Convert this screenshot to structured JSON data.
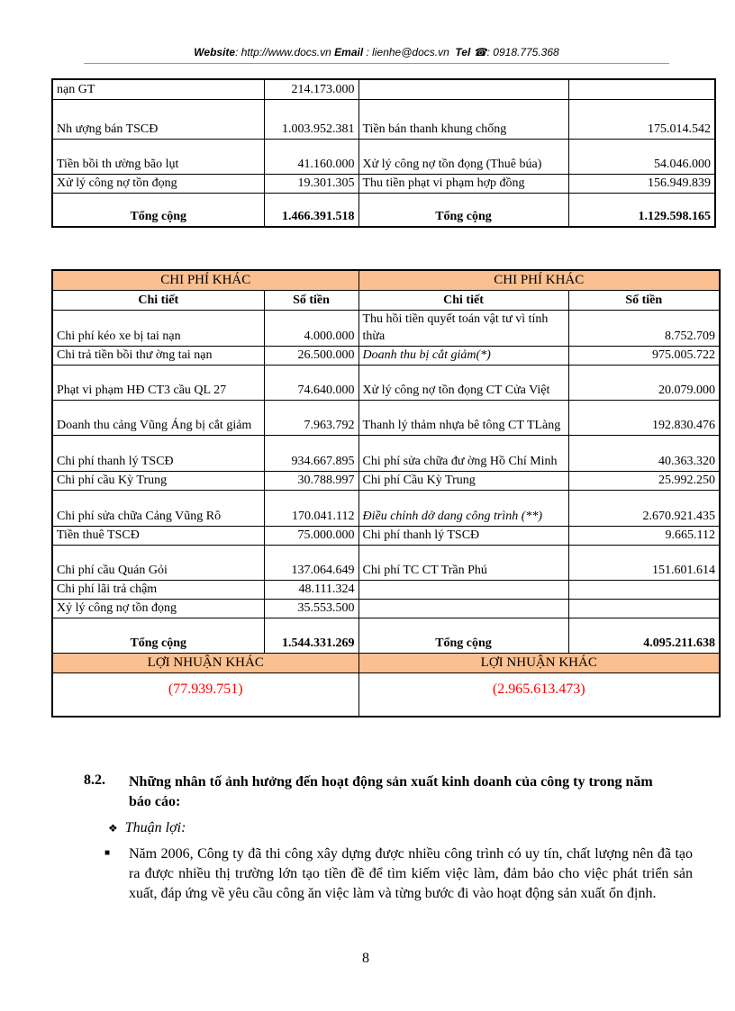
{
  "header": {
    "website_label": "Website",
    "website": ": http://www.docs.vn",
    "email_label": "Email",
    "email": ": lienhe@docs.vn",
    "tel_label": "Tel",
    "tel_icon": "phone-icon",
    "tel": ": 0918.775.368"
  },
  "table1": {
    "rows": [
      [
        "nạn GT",
        "214.173.000",
        "",
        ""
      ],
      [
        "Nh   ượng bán TSCĐ",
        "1.003.952.381",
        "Tiền bán thanh khung chống",
        "175.014.542"
      ],
      [
        "Tiền bồi th   ường bão lụt",
        "41.160.000",
        "Xử lý công nợ tồn đọng (Thuê búa)",
        "54.046.000"
      ],
      [
        "Xử lý công nợ tồn đọng",
        "19.301.305",
        "Thu tiền phạt vi phạm hợp đồng",
        "156.949.839"
      ]
    ],
    "total_label": "Tổng cộng",
    "total_left": "1.466.391.518",
    "total_right": "1.129.598.165"
  },
  "table2": {
    "title_left": "CHI PHÍ KHÁC",
    "title_right": "CHI PHÍ KHÁC",
    "col_detail": "Chi tiết",
    "col_amount": "Số tiền",
    "rows": [
      [
        "Chi phí kéo xe bị tai nạn",
        "4.000.000",
        "Thu hồi tiền quyết toán vật tư vì tính thừa",
        "8.752.709"
      ],
      [
        "Chi trả tiền bồi thư   ờng tai nạn",
        "26.500.000",
        "Doanh thu bị cắt giảm(*)",
        "975.005.722"
      ],
      [
        "Phạt vi phạm HĐ CT3 cầu QL 27",
        "74.640.000",
        "Xử lý công nợ tồn đọng CT Cửa Việt",
        "20.079.000"
      ],
      [
        "Doanh thu cảng Vũng Áng bị cắt giảm",
        "7.963.792",
        "Thanh lý thảm nhựa bê tông CT TLàng",
        "192.830.476"
      ],
      [
        "Chi phí thanh lý TSCĐ",
        "934.667.895",
        "Chi phí sửa chữa đư   ờng Hồ Chí Minh",
        "40.363.320"
      ],
      [
        "Chi phí cầu Kỳ Trung",
        "30.788.997",
        "Chi phí Cầu Kỳ Trung",
        "25.992.250"
      ],
      [
        "Chi phí sửa chữa Cảng Vũng Rô",
        "170.041.112",
        "Điều chỉnh dở dang công trình (**)",
        "2.670.921.435"
      ],
      [
        "Tiền thuê TSCĐ",
        "75.000.000",
        "Chi phí thanh lý TSCĐ",
        "9.665.112"
      ],
      [
        "Chi phí cầu Quán Gỏi",
        "137.064.649",
        "Chi phí TC CT Trần Phú",
        "151.601.614"
      ],
      [
        "Chi phí lãi trả chậm",
        "48.111.324",
        "",
        ""
      ],
      [
        "Xỷ lý công nợ tồn đọng",
        "35.553.500",
        "",
        ""
      ]
    ],
    "total_label": "Tổng cộng",
    "total_left": "1.544.331.269",
    "total_right": "4.095.211.638",
    "profit_label": "LỢI NHUẬN KHÁC",
    "profit_left": "(77.939.751)",
    "profit_right": "(2.965.613.473)",
    "header_color": "#fac08f",
    "profit_color": "#ff0000"
  },
  "section": {
    "number": "8.2.",
    "title": "Những nhân tố ảnh hưởng đến hoạt động sản xuất kinh doanh của công ty trong năm báo cáo:",
    "subheading": "Thuận lợi:",
    "paragraph": "Năm 2006, Công ty đã thi công xây dựng được nhiều công trình có uy tín, chất lượng nên đã tạo ra được nhiều thị trường lớn tạo tiền đề để tìm kiếm việc làm, đảm bảo cho việc phát triển sản xuất, đáp ứng về yêu cầu công ăn việc làm và từng bước đi vào hoạt động sản xuất ổn định."
  },
  "page_number": "8"
}
